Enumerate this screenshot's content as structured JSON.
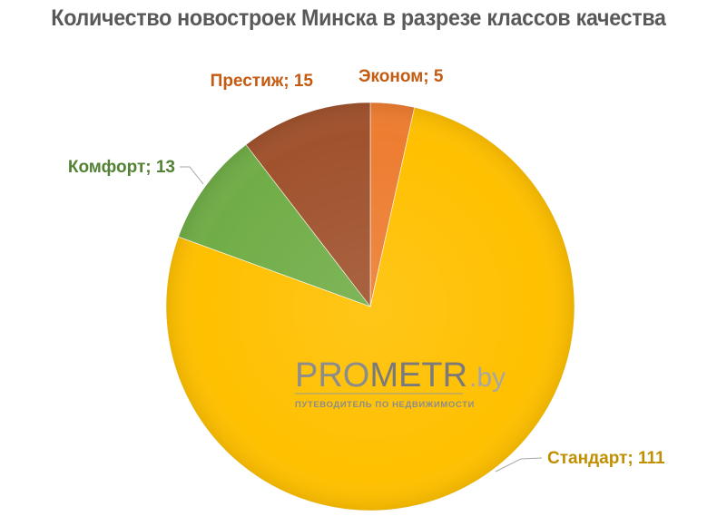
{
  "chart_data": {
    "type": "pie",
    "title": "Количество новостроек Минска в разрезе классов качества",
    "slices": [
      {
        "name": "Эконом",
        "value": 5,
        "label": "Эконом; 5",
        "color": "#ED7D31",
        "label_color": "#C55A11"
      },
      {
        "name": "Стандарт",
        "value": 111,
        "label": "Стандарт; 111",
        "color": "#FFC000",
        "label_color": "#BF8F00"
      },
      {
        "name": "Комфорт",
        "value": 13,
        "label": "Комфорт; 13",
        "color": "#70AD47",
        "label_color": "#538135"
      },
      {
        "name": "Престиж",
        "value": 15,
        "label": "Престиж; 15",
        "color": "#A0522D",
        "label_color": "#C55A11"
      }
    ],
    "start_angle": "12 o'clock",
    "direction": "clockwise",
    "legend": "none"
  },
  "watermark": {
    "pro": "PRO",
    "metr": "METR",
    "by": ".by",
    "tagline": "ПУТЕВОДИТЕЛЬ ПО НЕДВИЖИМОСТИ",
    "pro_color": "#8C8C8C",
    "metr_color": "#7A7A7A",
    "by_color": "#A6A6A6"
  }
}
